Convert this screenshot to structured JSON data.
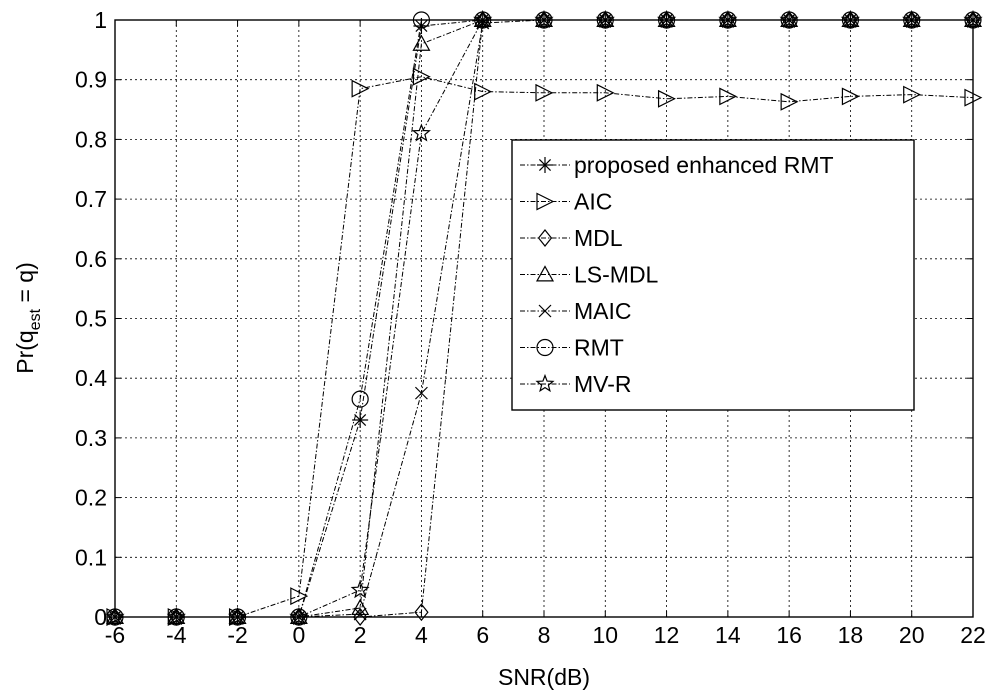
{
  "chart_data": {
    "type": "line",
    "xlabel": "SNR(dB)",
    "ylabel_main": "Pr(q",
    "ylabel_sub": "est",
    "ylabel_tail": " = q)",
    "x": [
      -6,
      -4,
      -2,
      0,
      2,
      4,
      6,
      8,
      10,
      12,
      14,
      16,
      18,
      20,
      22
    ],
    "xlim": [
      -6,
      22
    ],
    "ylim": [
      0,
      1
    ],
    "x_ticks": [
      -6,
      -4,
      -2,
      0,
      2,
      4,
      6,
      8,
      10,
      12,
      14,
      16,
      18,
      20,
      22
    ],
    "y_ticks": [
      0,
      0.1,
      0.2,
      0.3,
      0.4,
      0.5,
      0.6,
      0.7,
      0.8,
      0.9,
      1
    ],
    "y_tick_labels": [
      "0",
      "0.1",
      "0.2",
      "0.3",
      "0.4",
      "0.5",
      "0.6",
      "0.7",
      "0.8",
      "0.9",
      "1"
    ],
    "grid": true,
    "legend_position": "right",
    "series": [
      {
        "name": "proposed enhanced RMT",
        "marker": "asterisk",
        "values": [
          0,
          0,
          0,
          0,
          0.33,
          0.99,
          1,
          1,
          1,
          1,
          1,
          1,
          1,
          1,
          1
        ]
      },
      {
        "name": "AIC",
        "marker": "triangle-right",
        "values": [
          0,
          0,
          0,
          0.035,
          0.885,
          0.905,
          0.88,
          0.878,
          0.878,
          0.868,
          0.872,
          0.863,
          0.872,
          0.875,
          0.87
        ]
      },
      {
        "name": "MDL",
        "marker": "diamond",
        "values": [
          0,
          0,
          0,
          0,
          0,
          0.008,
          1,
          1,
          1,
          1,
          1,
          1,
          1,
          1,
          1
        ]
      },
      {
        "name": "LS-MDL",
        "marker": "triangle-up",
        "values": [
          0,
          0,
          0,
          0,
          0.015,
          0.96,
          1,
          1,
          1,
          1,
          1,
          1,
          1,
          1,
          1
        ]
      },
      {
        "name": "MAIC",
        "marker": "x",
        "values": [
          0,
          0,
          0,
          0,
          0.005,
          0.375,
          0.995,
          1,
          1,
          1,
          1,
          1,
          1,
          1,
          1
        ]
      },
      {
        "name": "RMT",
        "marker": "circle",
        "values": [
          0,
          0,
          0,
          0,
          0.365,
          1,
          1,
          1,
          1,
          1,
          1,
          1,
          1,
          1,
          1
        ]
      },
      {
        "name": "MV-R",
        "marker": "star",
        "values": [
          0,
          0,
          0,
          0,
          0.045,
          0.81,
          1,
          1,
          1,
          1,
          1,
          1,
          1,
          1,
          1
        ]
      }
    ]
  }
}
